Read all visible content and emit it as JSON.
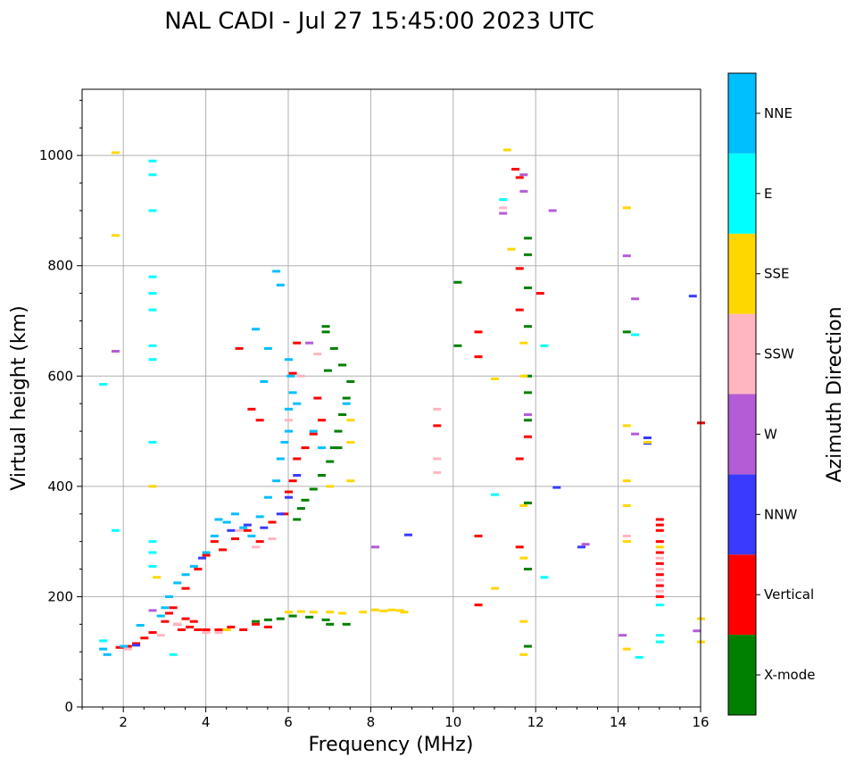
{
  "chart_data": {
    "type": "scatter",
    "title": "NAL CADI - Jul 27 15:45:00 2023 UTC",
    "xlabel": "Frequency (MHz)",
    "ylabel": "Virtual height (km)",
    "xlim": [
      1,
      16
    ],
    "ylim": [
      0,
      1120
    ],
    "xticks": [
      2,
      4,
      6,
      8,
      10,
      12,
      14,
      16
    ],
    "yticks": [
      0,
      200,
      400,
      600,
      800,
      1000
    ],
    "grid": true,
    "colorbar": {
      "title": "Azimuth Direction",
      "categories": [
        {
          "name": "X-mode",
          "color": "#008000"
        },
        {
          "name": "Vertical",
          "color": "#ff0000"
        },
        {
          "name": "NNW",
          "color": "#3a3aff"
        },
        {
          "name": "W",
          "color": "#b45cd6"
        },
        {
          "name": "SSW",
          "color": "#ffb6c1"
        },
        {
          "name": "SSE",
          "color": "#ffd700"
        },
        {
          "name": "E",
          "color": "#00ffff"
        },
        {
          "name": "NNE",
          "color": "#00bfff"
        }
      ]
    },
    "series": [
      {
        "name": "X-mode",
        "points": [
          [
            5.2,
            155
          ],
          [
            5.5,
            158
          ],
          [
            5.8,
            160
          ],
          [
            6.1,
            165
          ],
          [
            6.5,
            163
          ],
          [
            6.9,
            158
          ],
          [
            7.4,
            150
          ],
          [
            7.0,
            150
          ],
          [
            6.2,
            340
          ],
          [
            6.3,
            360
          ],
          [
            6.4,
            375
          ],
          [
            6.6,
            395
          ],
          [
            6.8,
            420
          ],
          [
            7.0,
            445
          ],
          [
            7.1,
            470
          ],
          [
            7.2,
            500
          ],
          [
            7.3,
            530
          ],
          [
            7.4,
            560
          ],
          [
            7.5,
            590
          ],
          [
            7.3,
            620
          ],
          [
            7.1,
            650
          ],
          [
            6.9,
            690
          ],
          [
            6.9,
            680
          ],
          [
            6.95,
            610
          ],
          [
            7.2,
            470
          ],
          [
            11.8,
            850
          ],
          [
            11.8,
            820
          ],
          [
            11.8,
            760
          ],
          [
            11.8,
            690
          ],
          [
            11.8,
            600
          ],
          [
            11.8,
            570
          ],
          [
            11.8,
            520
          ],
          [
            11.8,
            370
          ],
          [
            11.8,
            250
          ],
          [
            11.8,
            110
          ],
          [
            10.1,
            770
          ],
          [
            10.1,
            655
          ],
          [
            14.2,
            680
          ]
        ]
      },
      {
        "name": "Vertical",
        "points": [
          [
            1.9,
            108
          ],
          [
            2.1,
            110
          ],
          [
            2.3,
            115
          ],
          [
            2.5,
            125
          ],
          [
            2.7,
            135
          ],
          [
            3.0,
            155
          ],
          [
            3.1,
            170
          ],
          [
            3.2,
            180
          ],
          [
            3.3,
            150
          ],
          [
            3.4,
            140
          ],
          [
            3.5,
            160
          ],
          [
            3.6,
            145
          ],
          [
            3.7,
            155
          ],
          [
            3.8,
            140
          ],
          [
            4.0,
            140
          ],
          [
            4.3,
            140
          ],
          [
            4.6,
            145
          ],
          [
            4.9,
            140
          ],
          [
            5.2,
            150
          ],
          [
            5.5,
            145
          ],
          [
            3.5,
            215
          ],
          [
            3.8,
            250
          ],
          [
            4.0,
            275
          ],
          [
            4.2,
            300
          ],
          [
            4.4,
            285
          ],
          [
            4.7,
            305
          ],
          [
            5.0,
            320
          ],
          [
            5.3,
            300
          ],
          [
            5.6,
            335
          ],
          [
            5.9,
            350
          ],
          [
            6.0,
            390
          ],
          [
            6.1,
            410
          ],
          [
            6.2,
            450
          ],
          [
            6.4,
            470
          ],
          [
            6.6,
            495
          ],
          [
            6.8,
            520
          ],
          [
            6.7,
            560
          ],
          [
            5.1,
            540
          ],
          [
            5.3,
            520
          ],
          [
            6.1,
            605
          ],
          [
            6.2,
            660
          ],
          [
            4.8,
            650
          ],
          [
            11.5,
            975
          ],
          [
            11.6,
            960
          ],
          [
            11.6,
            795
          ],
          [
            11.6,
            720
          ],
          [
            11.8,
            490
          ],
          [
            11.6,
            450
          ],
          [
            11.6,
            290
          ],
          [
            12.1,
            750
          ],
          [
            10.6,
            680
          ],
          [
            10.6,
            635
          ],
          [
            10.6,
            310
          ],
          [
            10.6,
            185
          ],
          [
            9.6,
            510
          ],
          [
            15.0,
            340
          ],
          [
            15.0,
            330
          ],
          [
            15.0,
            320
          ],
          [
            15.0,
            300
          ],
          [
            15.0,
            280
          ],
          [
            15.0,
            260
          ],
          [
            15.0,
            240
          ],
          [
            15.0,
            220
          ],
          [
            15.0,
            200
          ],
          [
            16.0,
            515
          ]
        ]
      },
      {
        "name": "NNW",
        "points": [
          [
            2.3,
            112
          ],
          [
            3.9,
            270
          ],
          [
            4.6,
            320
          ],
          [
            5.0,
            330
          ],
          [
            5.4,
            325
          ],
          [
            5.8,
            350
          ],
          [
            6.0,
            380
          ],
          [
            6.2,
            420
          ],
          [
            8.9,
            312
          ],
          [
            12.5,
            398
          ],
          [
            13.1,
            290
          ],
          [
            15.8,
            745
          ],
          [
            14.7,
            488
          ],
          [
            14.7,
            478
          ]
        ]
      },
      {
        "name": "W",
        "points": [
          [
            1.8,
            645
          ],
          [
            2.7,
            175
          ],
          [
            6.5,
            660
          ],
          [
            8.1,
            290
          ],
          [
            11.2,
            895
          ],
          [
            11.7,
            965
          ],
          [
            11.7,
            935
          ],
          [
            12.4,
            900
          ],
          [
            11.8,
            530
          ],
          [
            14.2,
            818
          ],
          [
            14.4,
            740
          ],
          [
            14.4,
            495
          ],
          [
            14.1,
            130
          ],
          [
            13.2,
            295
          ],
          [
            15.9,
            138
          ]
        ]
      },
      {
        "name": "SSW",
        "points": [
          [
            2.1,
            105
          ],
          [
            2.9,
            130
          ],
          [
            3.3,
            150
          ],
          [
            4.0,
            135
          ],
          [
            4.3,
            135
          ],
          [
            4.8,
            320
          ],
          [
            5.2,
            290
          ],
          [
            5.6,
            305
          ],
          [
            6.0,
            520
          ],
          [
            6.3,
            600
          ],
          [
            6.7,
            640
          ],
          [
            9.6,
            540
          ],
          [
            9.6,
            450
          ],
          [
            9.6,
            425
          ],
          [
            11.2,
            905
          ],
          [
            14.2,
            310
          ],
          [
            15.0,
            270
          ],
          [
            15.0,
            250
          ],
          [
            15.0,
            230
          ],
          [
            15.0,
            210
          ]
        ]
      },
      {
        "name": "SSE",
        "points": [
          [
            1.8,
            1005
          ],
          [
            1.8,
            855
          ],
          [
            2.7,
            400
          ],
          [
            2.8,
            235
          ],
          [
            4.5,
            140
          ],
          [
            6.0,
            172
          ],
          [
            6.3,
            173
          ],
          [
            6.6,
            172
          ],
          [
            7.0,
            172
          ],
          [
            7.3,
            170
          ],
          [
            7.8,
            172
          ],
          [
            8.1,
            176
          ],
          [
            8.3,
            174
          ],
          [
            8.5,
            176
          ],
          [
            8.7,
            175
          ],
          [
            8.8,
            172
          ],
          [
            7.5,
            410
          ],
          [
            7.5,
            480
          ],
          [
            7.5,
            520
          ],
          [
            7.0,
            400
          ],
          [
            11.3,
            1010
          ],
          [
            11.4,
            830
          ],
          [
            11.0,
            595
          ],
          [
            11.0,
            215
          ],
          [
            11.7,
            660
          ],
          [
            11.7,
            600
          ],
          [
            11.7,
            365
          ],
          [
            11.7,
            270
          ],
          [
            11.7,
            155
          ],
          [
            11.7,
            95
          ],
          [
            14.2,
            905
          ],
          [
            14.2,
            510
          ],
          [
            14.2,
            410
          ],
          [
            14.2,
            365
          ],
          [
            14.2,
            300
          ],
          [
            14.2,
            105
          ],
          [
            14.7,
            480
          ],
          [
            15.0,
            290
          ],
          [
            16.0,
            160
          ],
          [
            16.0,
            118
          ]
        ]
      },
      {
        "name": "E",
        "points": [
          [
            2.7,
            990
          ],
          [
            2.7,
            965
          ],
          [
            2.7,
            900
          ],
          [
            2.7,
            780
          ],
          [
            2.7,
            750
          ],
          [
            2.7,
            720
          ],
          [
            2.7,
            655
          ],
          [
            2.7,
            630
          ],
          [
            2.7,
            480
          ],
          [
            2.7,
            300
          ],
          [
            2.7,
            280
          ],
          [
            2.7,
            255
          ],
          [
            1.5,
            585
          ],
          [
            1.8,
            320
          ],
          [
            1.5,
            120
          ],
          [
            3.2,
            95
          ],
          [
            11.2,
            920
          ],
          [
            12.2,
            655
          ],
          [
            12.2,
            235
          ],
          [
            11.0,
            385
          ],
          [
            14.4,
            675
          ],
          [
            14.5,
            90
          ],
          [
            15.0,
            130
          ],
          [
            15.0,
            118
          ],
          [
            15.0,
            185
          ]
        ]
      },
      {
        "name": "NNE",
        "points": [
          [
            1.5,
            105
          ],
          [
            1.6,
            95
          ],
          [
            2.0,
            110
          ],
          [
            2.4,
            148
          ],
          [
            2.9,
            165
          ],
          [
            3.0,
            180
          ],
          [
            3.1,
            200
          ],
          [
            3.3,
            225
          ],
          [
            3.5,
            240
          ],
          [
            3.7,
            255
          ],
          [
            4.0,
            280
          ],
          [
            4.2,
            310
          ],
          [
            4.3,
            340
          ],
          [
            4.5,
            335
          ],
          [
            4.7,
            350
          ],
          [
            4.9,
            325
          ],
          [
            5.1,
            310
          ],
          [
            5.3,
            345
          ],
          [
            5.5,
            380
          ],
          [
            5.7,
            410
          ],
          [
            5.8,
            450
          ],
          [
            5.9,
            480
          ],
          [
            6.0,
            500
          ],
          [
            6.0,
            540
          ],
          [
            6.1,
            570
          ],
          [
            6.05,
            600
          ],
          [
            5.5,
            650
          ],
          [
            5.4,
            590
          ],
          [
            5.2,
            685
          ],
          [
            5.8,
            765
          ],
          [
            5.7,
            790
          ],
          [
            6.0,
            630
          ],
          [
            6.2,
            550
          ],
          [
            6.6,
            500
          ],
          [
            6.8,
            470
          ],
          [
            7.4,
            550
          ]
        ]
      }
    ]
  }
}
